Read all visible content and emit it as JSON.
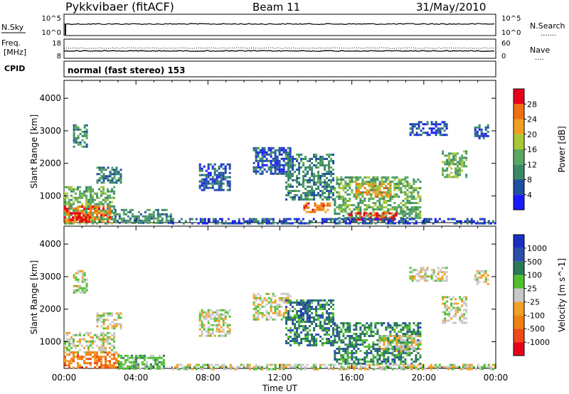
{
  "header": {
    "station": "Pykkvibaer (fitACF)",
    "beam": "Beam 11",
    "date": "31/May/2010"
  },
  "strip_sky": {
    "left_label": "N.Sky",
    "left_ticks": [
      "10^5",
      "10^0"
    ],
    "right_label": "N.Search",
    "right_ticks": [
      "10^5",
      "10^0"
    ],
    "line_color": "#000000"
  },
  "strip_freq": {
    "label_lines": [
      "Freq.",
      "[MHz]"
    ],
    "left_ticks": [
      "18",
      "8"
    ],
    "right_label": "Nave",
    "right_ticks": [
      "60",
      "0"
    ],
    "line_color": "#000000"
  },
  "cpid": {
    "label": "CPID",
    "text": "normal (fast stereo) 153"
  },
  "chart_data": [
    {
      "type": "heatmap",
      "title": "",
      "quantity": "Power",
      "colorbar_label": "Power [dB]",
      "colorbar_ticks": [
        "4",
        "8",
        "12",
        "16",
        "20",
        "24",
        "28"
      ],
      "colorbar_colors": [
        "#1a1aff",
        "#1f4fa0",
        "#3a8a68",
        "#5aa860",
        "#a8c838",
        "#f0a020",
        "#f07010",
        "#e8001a"
      ],
      "ylabel": "Slant Range [km]",
      "yticks": [
        "1000",
        "2000",
        "3000",
        "4000"
      ],
      "ylim": [
        180,
        4550
      ],
      "xlim": [
        0,
        24
      ],
      "xticks": [
        "00:00",
        "04:00",
        "08:00",
        "12:00",
        "16:00",
        "20:00",
        "00:00"
      ],
      "regions": [
        {
          "t": [
            0.0,
            2.8
          ],
          "r": [
            180,
            1300
          ],
          "level": 3
        },
        {
          "t": [
            0.0,
            2.5
          ],
          "r": [
            200,
            700
          ],
          "level": 6
        },
        {
          "t": [
            0.2,
            1.5
          ],
          "r": [
            250,
            500
          ],
          "level": 7
        },
        {
          "t": [
            2.8,
            6.0
          ],
          "r": [
            180,
            600
          ],
          "level": 2
        },
        {
          "t": [
            1.8,
            3.2
          ],
          "r": [
            1400,
            1900
          ],
          "level": 2
        },
        {
          "t": [
            0.5,
            1.3
          ],
          "r": [
            2500,
            3200
          ],
          "level": 2
        },
        {
          "t": [
            7.5,
            9.2
          ],
          "r": [
            1200,
            2000
          ],
          "level": 1
        },
        {
          "t": [
            10.5,
            12.6
          ],
          "r": [
            1700,
            2500
          ],
          "level": 1
        },
        {
          "t": [
            12.3,
            15.0
          ],
          "r": [
            900,
            2300
          ],
          "level": 2
        },
        {
          "t": [
            13.3,
            14.8
          ],
          "r": [
            500,
            800
          ],
          "level": 6
        },
        {
          "t": [
            15.0,
            19.8
          ],
          "r": [
            300,
            1600
          ],
          "level": 3
        },
        {
          "t": [
            15.8,
            18.5
          ],
          "r": [
            250,
            500
          ],
          "level": 7
        },
        {
          "t": [
            16.2,
            18.2
          ],
          "r": [
            1000,
            1400
          ],
          "level": 5
        },
        {
          "t": [
            19.2,
            21.3
          ],
          "r": [
            2900,
            3300
          ],
          "level": 1
        },
        {
          "t": [
            21.0,
            22.4
          ],
          "r": [
            1600,
            2400
          ],
          "level": 3
        },
        {
          "t": [
            22.8,
            23.6
          ],
          "r": [
            2800,
            3200
          ],
          "level": 1
        },
        {
          "t": [
            6.0,
            24.0
          ],
          "r": [
            180,
            320
          ],
          "level": 1
        }
      ]
    },
    {
      "type": "heatmap",
      "title": "",
      "quantity": "Velocity",
      "colorbar_label": "Velocity [m s^-1]",
      "colorbar_ticks": [
        "-1000",
        "-500",
        "-100",
        "-25",
        "25",
        "100",
        "500",
        "1000"
      ],
      "colorbar_colors": [
        "#e8001a",
        "#f04818",
        "#f08010",
        "#f0a028",
        "#c8c8c8",
        "#50c030",
        "#2a7a58",
        "#2a50a8",
        "#1830c0"
      ],
      "ylabel": "Slant Range [km]",
      "yticks": [
        "1000",
        "2000",
        "3000",
        "4000"
      ],
      "ylim": [
        180,
        4550
      ],
      "xlim": [
        0,
        24
      ],
      "xticks": [
        "00:00",
        "04:00",
        "08:00",
        "12:00",
        "16:00",
        "20:00",
        "00:00"
      ],
      "xlabel": "Time UT",
      "regions": [
        {
          "t": [
            0.0,
            2.8
          ],
          "r": [
            700,
            1300
          ],
          "level": 4
        },
        {
          "t": [
            0.0,
            3.0
          ],
          "r": [
            200,
            700
          ],
          "level": 2
        },
        {
          "t": [
            3.0,
            5.5
          ],
          "r": [
            200,
            600
          ],
          "level": 5
        },
        {
          "t": [
            0.5,
            1.3
          ],
          "r": [
            2500,
            3200
          ],
          "level": 4
        },
        {
          "t": [
            1.8,
            3.2
          ],
          "r": [
            1400,
            1900
          ],
          "level": 4
        },
        {
          "t": [
            7.5,
            9.2
          ],
          "r": [
            1200,
            2000
          ],
          "level": 4
        },
        {
          "t": [
            10.5,
            12.6
          ],
          "r": [
            1700,
            2500
          ],
          "level": 4
        },
        {
          "t": [
            12.3,
            15.0
          ],
          "r": [
            900,
            2300
          ],
          "level": 6
        },
        {
          "t": [
            13.0,
            13.8
          ],
          "r": [
            1600,
            2300
          ],
          "level": 7
        },
        {
          "t": [
            15.0,
            19.8
          ],
          "r": [
            300,
            1600
          ],
          "level": 6
        },
        {
          "t": [
            17.5,
            19.8
          ],
          "r": [
            700,
            1200
          ],
          "level": 4
        },
        {
          "t": [
            19.2,
            21.3
          ],
          "r": [
            2900,
            3300
          ],
          "level": 4
        },
        {
          "t": [
            21.0,
            22.4
          ],
          "r": [
            1600,
            2400
          ],
          "level": 4
        },
        {
          "t": [
            22.8,
            23.6
          ],
          "r": [
            2800,
            3200
          ],
          "level": 4
        },
        {
          "t": [
            6.0,
            24.0
          ],
          "r": [
            180,
            320
          ],
          "level": 4
        }
      ]
    }
  ]
}
